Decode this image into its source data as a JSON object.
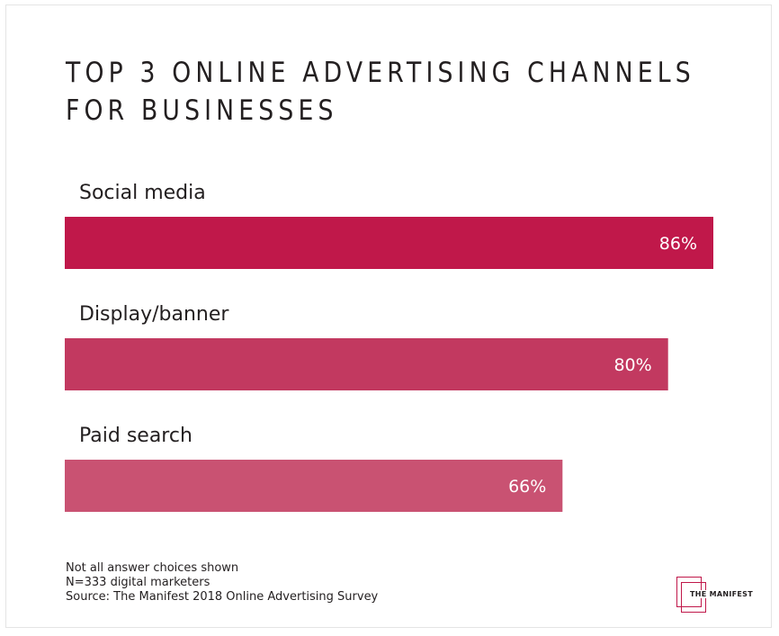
{
  "chart_data": {
    "type": "bar",
    "orientation": "horizontal",
    "title_lines": [
      "TOP 3 ONLINE ADVERTISING CHANNELS",
      "FOR BUSINESSES"
    ],
    "categories": [
      "Social media",
      "Display/banner",
      "Paid search"
    ],
    "values": [
      86,
      80,
      66
    ],
    "value_labels": [
      "86%",
      "80%",
      "66%"
    ],
    "unit": "%",
    "xlim": [
      0,
      86
    ],
    "colors": [
      "#c0184a",
      "#c23960",
      "#c95272"
    ],
    "grid": false,
    "legend": "none"
  },
  "notes": [
    "Not all answer choices shown",
    "N=333 digital marketers",
    "Source: The Manifest 2018 Online Advertising Survey"
  ],
  "logo": {
    "text": "THE MANIFEST",
    "color": "#c0184a"
  }
}
